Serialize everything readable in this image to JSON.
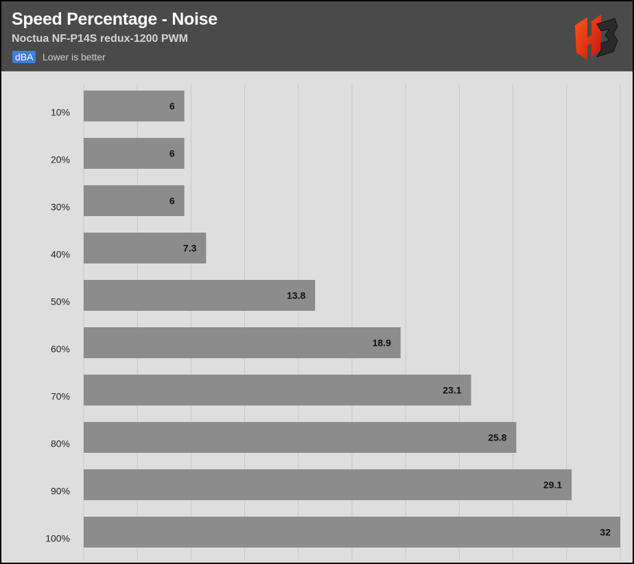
{
  "header": {
    "title": "Speed Percentage - Noise",
    "subtitle": "Noctua NF-P14S redux-1200 PWM",
    "unit_badge": "dBA",
    "note": "Lower is better",
    "logo_icon": "hb-logo-icon"
  },
  "colors": {
    "header_bg": "#4a4a4a",
    "plot_bg": "#dedede",
    "bar": "#8c8c8c",
    "badge": "#3d7de0"
  },
  "chart_data": {
    "type": "bar",
    "orientation": "horizontal",
    "title": "Speed Percentage - Noise",
    "subtitle": "Noctua NF-P14S redux-1200 PWM",
    "unit": "dBA",
    "categories": [
      "10%",
      "20%",
      "30%",
      "40%",
      "50%",
      "60%",
      "70%",
      "80%",
      "90%",
      "100%"
    ],
    "values": [
      6,
      6,
      6,
      7.3,
      13.8,
      18.9,
      23.1,
      25.8,
      29.1,
      32
    ],
    "xlim": [
      0,
      32
    ],
    "grid": true,
    "legend": "none"
  }
}
